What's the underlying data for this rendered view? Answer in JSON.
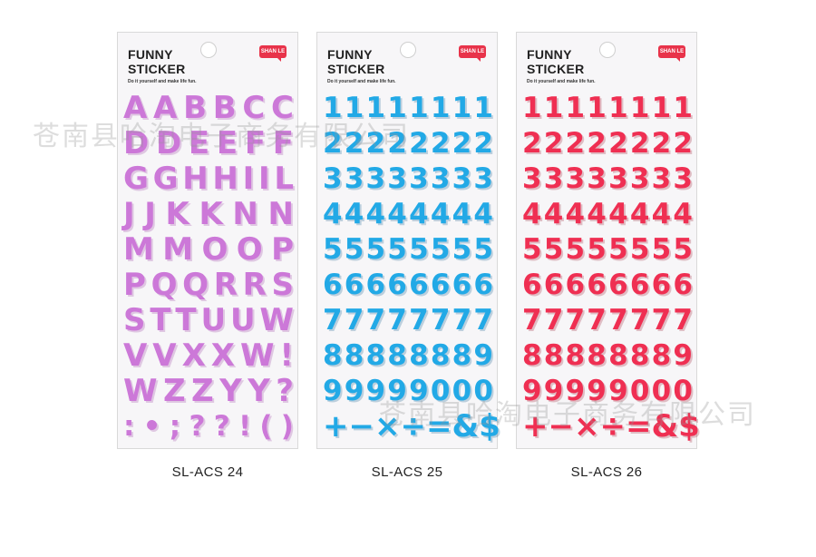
{
  "watermark": "苍南县哈淘电子商务有限公司",
  "cards": [
    {
      "theme": "pink",
      "color": "#cc78d8",
      "brand_line1": "FUNNY",
      "brand_line2": "STICKER",
      "tagline": "Do it yourself and make life fun.",
      "logo": "SHAN LE",
      "caption": "SL-ACS 24",
      "rows": [
        [
          "A",
          "A",
          "B",
          "B",
          "C",
          "C"
        ],
        [
          "D",
          "D",
          "E",
          "E",
          "F",
          "F"
        ],
        [
          "G",
          "G",
          "H",
          "H",
          "I",
          "I",
          "L"
        ],
        [
          "J",
          "J",
          "K",
          "K",
          "N",
          "N"
        ],
        [
          "M",
          "M",
          "O",
          "O",
          "P"
        ],
        [
          "P",
          "Q",
          "Q",
          "R",
          "R",
          "S"
        ],
        [
          "S",
          "T",
          "T",
          "U",
          "U",
          "W"
        ],
        [
          "V",
          "V",
          "X",
          "X",
          "W",
          "!"
        ],
        [
          "W",
          "Z",
          "Z",
          "Y",
          "Y",
          "?"
        ],
        [
          ":",
          "•",
          ";",
          "?",
          "?",
          "!",
          "(",
          ")"
        ]
      ]
    },
    {
      "theme": "blue",
      "color": "#22a9e6",
      "brand_line1": "FUNNY",
      "brand_line2": "STICKER",
      "tagline": "Do it yourself and make life fun.",
      "logo": "SHAN LE",
      "caption": "SL-ACS 25",
      "rows": [
        [
          "1",
          "1",
          "1",
          "1",
          "1",
          "1",
          "1",
          "1"
        ],
        [
          "2",
          "2",
          "2",
          "2",
          "2",
          "2",
          "2",
          "2"
        ],
        [
          "3",
          "3",
          "3",
          "3",
          "3",
          "3",
          "3",
          "3"
        ],
        [
          "4",
          "4",
          "4",
          "4",
          "4",
          "4",
          "4",
          "4"
        ],
        [
          "5",
          "5",
          "5",
          "5",
          "5",
          "5",
          "5",
          "5"
        ],
        [
          "6",
          "6",
          "6",
          "6",
          "6",
          "6",
          "6",
          "6"
        ],
        [
          "7",
          "7",
          "7",
          "7",
          "7",
          "7",
          "7",
          "7"
        ],
        [
          "8",
          "8",
          "8",
          "8",
          "8",
          "8",
          "8",
          "9"
        ],
        [
          "9",
          "9",
          "9",
          "9",
          "9",
          "0",
          "0",
          "0"
        ],
        [
          "+",
          "−",
          "×",
          "÷",
          "=",
          "&",
          "$"
        ]
      ]
    },
    {
      "theme": "red",
      "color": "#ef2f52",
      "brand_line1": "FUNNY",
      "brand_line2": "STICKER",
      "tagline": "Do it yourself and make life fun.",
      "logo": "SHAN LE",
      "caption": "SL-ACS 26",
      "rows": [
        [
          "1",
          "1",
          "1",
          "1",
          "1",
          "1",
          "1",
          "1"
        ],
        [
          "2",
          "2",
          "2",
          "2",
          "2",
          "2",
          "2",
          "2"
        ],
        [
          "3",
          "3",
          "3",
          "3",
          "3",
          "3",
          "3",
          "3"
        ],
        [
          "4",
          "4",
          "4",
          "4",
          "4",
          "4",
          "4",
          "4"
        ],
        [
          "5",
          "5",
          "5",
          "5",
          "5",
          "5",
          "5",
          "5"
        ],
        [
          "6",
          "6",
          "6",
          "6",
          "6",
          "6",
          "6",
          "6"
        ],
        [
          "7",
          "7",
          "7",
          "7",
          "7",
          "7",
          "7",
          "7"
        ],
        [
          "8",
          "8",
          "8",
          "8",
          "8",
          "8",
          "8",
          "9"
        ],
        [
          "9",
          "9",
          "9",
          "9",
          "9",
          "0",
          "0",
          "0"
        ],
        [
          "+",
          "−",
          "×",
          "÷",
          "=",
          "&",
          "$"
        ]
      ]
    }
  ]
}
